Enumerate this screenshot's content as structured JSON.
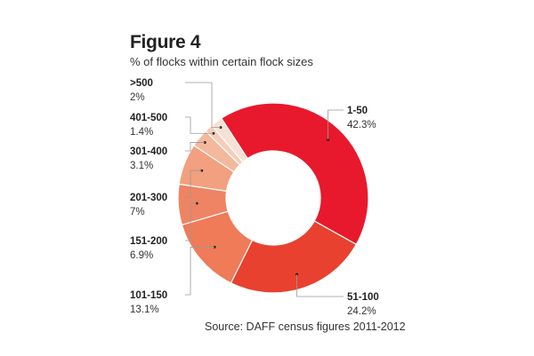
{
  "chart_data": {
    "type": "pie",
    "variant": "donut",
    "title": "Figure 4",
    "subtitle": "% of flocks within certain flock sizes",
    "source": "Source: DAFF census figures 2011-2012",
    "unit": "%",
    "slices": [
      {
        "label": "1-50",
        "value": 42.3,
        "display": "42.3%",
        "color": "#e8192c"
      },
      {
        "label": "51-100",
        "value": 24.2,
        "display": "24.2%",
        "color": "#e8412f"
      },
      {
        "label": "101-150",
        "value": 13.1,
        "display": "13.1%",
        "color": "#ef7b58"
      },
      {
        "label": "151-200",
        "value": 6.9,
        "display": "6.9%",
        "color": "#ee8463"
      },
      {
        "label": "201-300",
        "value": 7,
        "display": "7%",
        "color": "#f2a07f"
      },
      {
        "label": "301-400",
        "value": 3.1,
        "display": "3.1%",
        "color": "#f4b89d"
      },
      {
        "label": "401-500",
        "value": 1.4,
        "display": "1.4%",
        "color": "#f5cdb9"
      },
      {
        "label": ">500",
        "value": 2,
        "display": "2%",
        "color": "#f6e1d5"
      }
    ]
  }
}
